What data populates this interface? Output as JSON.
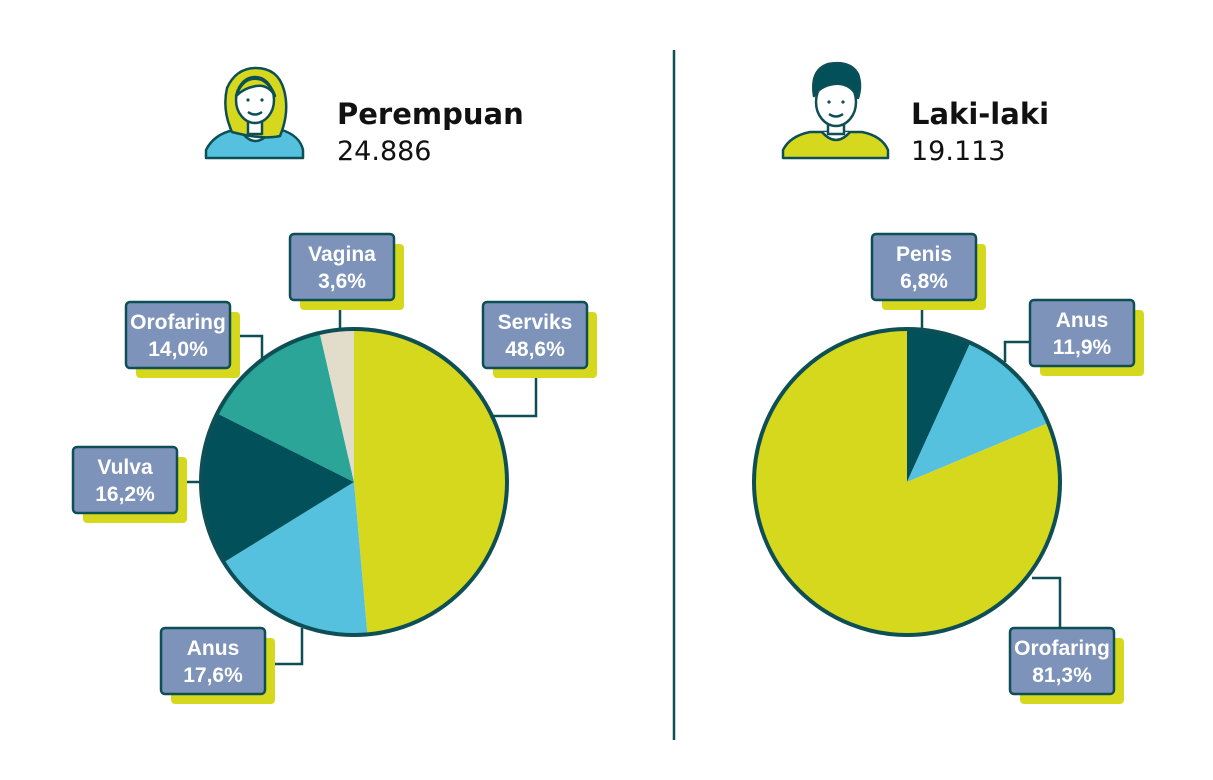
{
  "chart_data": [
    {
      "type": "pie",
      "title": "Perempuan",
      "total": "24.886",
      "icon": "woman-icon",
      "slices": [
        {
          "label": "Serviks",
          "value": 48.6,
          "display": "48,6%",
          "color": "#d6d81d"
        },
        {
          "label": "Anus",
          "value": 17.6,
          "display": "17,6%",
          "color": "#55c1df"
        },
        {
          "label": "Vulva",
          "value": 16.2,
          "display": "16,2%",
          "color": "#02515a"
        },
        {
          "label": "Orofaring",
          "value": 14.0,
          "display": "14,0%",
          "color": "#2aa597"
        },
        {
          "label": "Vagina",
          "value": 3.6,
          "display": "3,6%",
          "color": "#e1ddca"
        }
      ]
    },
    {
      "type": "pie",
      "title": "Laki-laki",
      "total": "19.113",
      "icon": "man-icon",
      "slices": [
        {
          "label": "Penis",
          "value": 6.8,
          "display": "6,8%",
          "color": "#02515a"
        },
        {
          "label": "Anus",
          "value": 11.9,
          "display": "11,9%",
          "color": "#55c1df"
        },
        {
          "label": "Orofaring",
          "value": 81.3,
          "display": "81,3%",
          "color": "#d6d81d"
        }
      ]
    }
  ],
  "colors": {
    "outline": "#0d4f55",
    "label_box": "#7d93b9",
    "label_shadow": "#d6d81d",
    "divider": "#0d4f55"
  }
}
